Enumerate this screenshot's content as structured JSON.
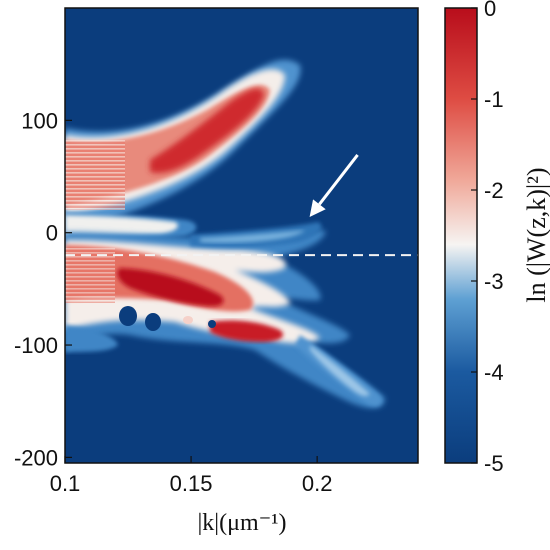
{
  "chart_data": {
    "type": "heatmap",
    "xlabel": "|k|(μm⁻¹)",
    "ylabel": "",
    "xlim": [
      0.1,
      0.24
    ],
    "ylim": [
      -205,
      200
    ],
    "xticks": [
      0.1,
      0.15,
      0.2
    ],
    "xtick_labels": [
      "0.1",
      "0.15",
      "0.2"
    ],
    "yticks": [
      100,
      0,
      -100,
      -200
    ],
    "ytick_labels": [
      "100",
      "0",
      "-100",
      "-200"
    ],
    "colorbar": {
      "label": "ln (|W(z,k)|²)",
      "range": [
        -5,
        0
      ],
      "ticks": [
        0,
        -1,
        -2,
        -3,
        -4,
        -5
      ],
      "tick_labels": [
        "0",
        "-1",
        "-2",
        "-3",
        "-4",
        "-5"
      ],
      "colormap": [
        "#0b3d7d",
        "#3a80c0",
        "#f7f2ee",
        "#e25c50",
        "#b80d1b"
      ]
    },
    "annotations": {
      "dashed_line_y": -20,
      "arrow_tip": [
        0.197,
        14
      ]
    },
    "features": [
      {
        "name": "upper-branch",
        "peak_value": -0.6,
        "x_range": [
          0.1,
          0.19
        ],
        "y_range": [
          40,
          150
        ]
      },
      {
        "name": "lower-lobe",
        "peak_value": -0.3,
        "x_range": [
          0.1,
          0.18
        ],
        "y_range": [
          -90,
          -20
        ]
      },
      {
        "name": "lower-right-lobe",
        "peak_value": -0.4,
        "x_range": [
          0.16,
          0.2
        ],
        "y_range": [
          -100,
          -70
        ]
      },
      {
        "name": "tail",
        "peak_value": -3.5,
        "x_range": [
          0.18,
          0.22
        ],
        "y_range": [
          -150,
          -100
        ]
      }
    ],
    "grid": false
  },
  "colors": {
    "background": "#0b3d7d",
    "low": "#0b3d7d",
    "mid": "#f7f2ee",
    "high": "#b80d1b",
    "dashed_line": "#f3f3f3",
    "arrow": "#ffffff"
  }
}
